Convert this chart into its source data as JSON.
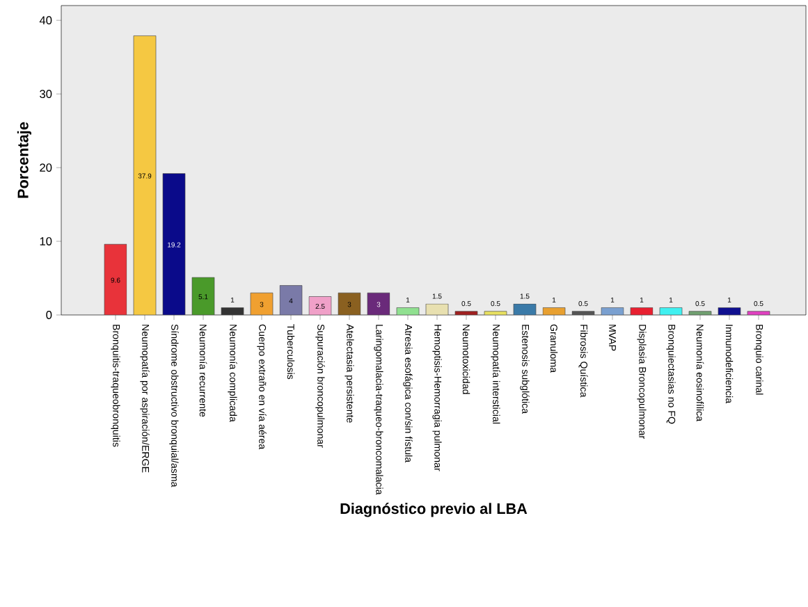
{
  "chart_data": {
    "type": "bar",
    "xlabel": "Diagnóstico previo al LBA",
    "ylabel": "Porcentaje",
    "categories": [
      "Bronquitis-traqueobronquitis",
      "Neumopatía por aspiración/ERGE",
      "Síndrome obstructivo bronquial/asma",
      "Neumonía recurrente",
      "Neumonía complicada",
      "Cuerpo extraño en vía aérea",
      "Tuberculosis",
      "Supuración broncopulmonar",
      "Atelectasia persistente",
      "Laringomalacia-traqueo-broncomalacia",
      "Atresia esofágica con/sin fístula",
      "Hemoptisis-Hemorragia pulmonar",
      "Neumotoxicidad",
      "Neumopatía intersticial",
      "Estenosis subglótica",
      "Granuloma",
      "Fibrosis Quística",
      "MVAP",
      "Displasia Broncopulmonar",
      "Bronquiectasias no FQ",
      "Neumonía eosinofílica",
      "Inmunodeficiencia",
      "Bronquio carinal"
    ],
    "values": [
      9.6,
      37.9,
      19.2,
      5.1,
      1,
      3,
      4,
      2.5,
      3,
      3,
      1,
      1.5,
      0.5,
      0.5,
      1.5,
      1,
      0.5,
      1,
      1,
      1,
      0.5,
      1,
      0.5
    ],
    "colors": [
      "#e8333a",
      "#f5c842",
      "#0a0a8a",
      "#4a9a2a",
      "#333333",
      "#f0a030",
      "#7a7aa8",
      "#f0a0c8",
      "#8a6020",
      "#6a2a7a",
      "#90e090",
      "#e8e0b0",
      "#a02020",
      "#e8e060",
      "#3a7aa8",
      "#e8a030",
      "#555555",
      "#7aa0d0",
      "#e82030",
      "#40f0f0",
      "#70a070",
      "#101090",
      "#e040c0"
    ],
    "ylim": [
      0,
      42
    ],
    "yticks": [
      0,
      10,
      20,
      30,
      40
    ],
    "data_labels": true,
    "grid": false
  }
}
